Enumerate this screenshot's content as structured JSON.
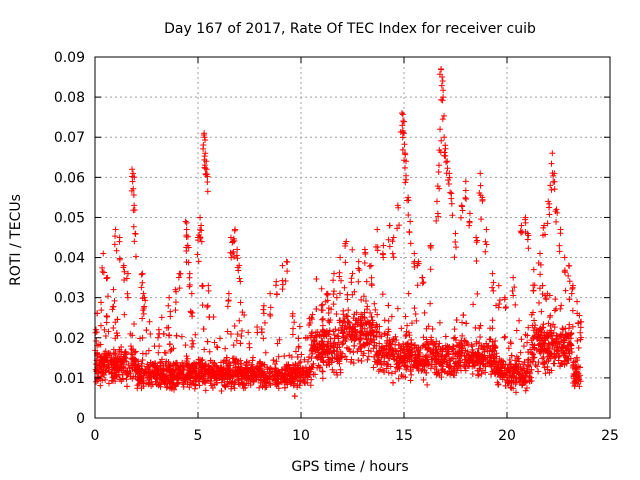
{
  "chart_data": {
    "type": "scatter",
    "title": "Day 167 of 2017, Rate Of TEC Index for receiver cuib",
    "xlabel": "GPS time / hours",
    "ylabel": "ROTI / TECUs",
    "xlim": [
      0,
      25
    ],
    "ylim": [
      0,
      0.09
    ],
    "x_ticks": [
      "0",
      "5",
      "10",
      "15",
      "20",
      "25"
    ],
    "y_ticks": [
      "0",
      "0.01",
      "0.02",
      "0.03",
      "0.04",
      "0.05",
      "0.06",
      "0.07",
      "0.08",
      "0.09"
    ],
    "grid": true,
    "marker": "+",
    "series": [
      {
        "color": "#ff0000",
        "data_x_range": [
          0,
          23.6
        ],
        "points": [
          [
            0.05,
            0.022
          ],
          [
            0.1,
            0.018
          ],
          [
            0.4,
            0.041
          ],
          [
            0.6,
            0.035
          ],
          [
            0.9,
            0.032
          ],
          [
            1.0,
            0.047
          ],
          [
            1.2,
            0.045
          ],
          [
            1.4,
            0.038
          ],
          [
            1.6,
            0.036
          ],
          [
            1.8,
            0.062
          ],
          [
            1.85,
            0.061
          ],
          [
            1.9,
            0.053
          ],
          [
            1.95,
            0.046
          ],
          [
            2.3,
            0.036
          ],
          [
            2.35,
            0.031
          ],
          [
            2.4,
            0.03
          ],
          [
            3.1,
            0.022
          ],
          [
            3.6,
            0.03
          ],
          [
            3.9,
            0.032
          ],
          [
            4.1,
            0.036
          ],
          [
            4.4,
            0.049
          ],
          [
            4.45,
            0.047
          ],
          [
            4.5,
            0.043
          ],
          [
            4.6,
            0.036
          ],
          [
            4.7,
            0.031
          ],
          [
            5.0,
            0.045
          ],
          [
            5.1,
            0.05
          ],
          [
            5.15,
            0.048
          ],
          [
            5.2,
            0.033
          ],
          [
            5.3,
            0.071
          ],
          [
            5.32,
            0.07
          ],
          [
            5.35,
            0.066
          ],
          [
            5.4,
            0.064
          ],
          [
            5.42,
            0.062
          ],
          [
            5.5,
            0.033
          ],
          [
            6.5,
            0.031
          ],
          [
            6.6,
            0.045
          ],
          [
            6.7,
            0.044
          ],
          [
            6.8,
            0.047
          ],
          [
            6.9,
            0.042
          ],
          [
            7.0,
            0.038
          ],
          [
            8.2,
            0.028
          ],
          [
            8.5,
            0.031
          ],
          [
            8.8,
            0.034
          ],
          [
            9.1,
            0.038
          ],
          [
            9.3,
            0.039
          ],
          [
            9.6,
            0.026
          ],
          [
            10.5,
            0.025
          ],
          [
            11.0,
            0.028
          ],
          [
            11.3,
            0.031
          ],
          [
            11.6,
            0.036
          ],
          [
            11.9,
            0.04
          ],
          [
            12.2,
            0.044
          ],
          [
            12.5,
            0.036
          ],
          [
            12.8,
            0.039
          ],
          [
            13.1,
            0.042
          ],
          [
            13.4,
            0.038
          ],
          [
            13.7,
            0.047
          ],
          [
            14.0,
            0.043
          ],
          [
            14.3,
            0.048
          ],
          [
            14.5,
            0.045
          ],
          [
            14.7,
            0.053
          ],
          [
            14.9,
            0.076
          ],
          [
            14.95,
            0.074
          ],
          [
            15.0,
            0.071
          ],
          [
            15.05,
            0.066
          ],
          [
            15.1,
            0.064
          ],
          [
            15.2,
            0.055
          ],
          [
            15.3,
            0.049
          ],
          [
            15.5,
            0.041
          ],
          [
            15.7,
            0.039
          ],
          [
            15.9,
            0.035
          ],
          [
            16.3,
            0.043
          ],
          [
            16.6,
            0.054
          ],
          [
            16.7,
            0.063
          ],
          [
            16.75,
            0.072
          ],
          [
            16.8,
            0.087
          ],
          [
            16.85,
            0.085
          ],
          [
            16.9,
            0.08
          ],
          [
            16.95,
            0.07
          ],
          [
            17.0,
            0.068
          ],
          [
            17.1,
            0.064
          ],
          [
            17.2,
            0.061
          ],
          [
            17.3,
            0.056
          ],
          [
            17.5,
            0.046
          ],
          [
            17.8,
            0.053
          ],
          [
            18.0,
            0.059
          ],
          [
            18.2,
            0.051
          ],
          [
            18.5,
            0.045
          ],
          [
            18.7,
            0.061
          ],
          [
            18.8,
            0.055
          ],
          [
            19.0,
            0.047
          ],
          [
            19.3,
            0.036
          ],
          [
            19.6,
            0.033
          ],
          [
            19.9,
            0.03
          ],
          [
            20.3,
            0.035
          ],
          [
            20.7,
            0.048
          ],
          [
            20.9,
            0.05
          ],
          [
            21.0,
            0.046
          ],
          [
            21.3,
            0.037
          ],
          [
            21.6,
            0.041
          ],
          [
            21.8,
            0.048
          ],
          [
            22.0,
            0.054
          ],
          [
            22.1,
            0.058
          ],
          [
            22.2,
            0.066
          ],
          [
            22.3,
            0.061
          ],
          [
            22.4,
            0.052
          ],
          [
            22.6,
            0.047
          ],
          [
            22.8,
            0.04
          ],
          [
            23.0,
            0.038
          ],
          [
            23.2,
            0.033
          ],
          [
            23.4,
            0.029
          ],
          [
            23.6,
            0.024
          ]
        ]
      }
    ]
  }
}
